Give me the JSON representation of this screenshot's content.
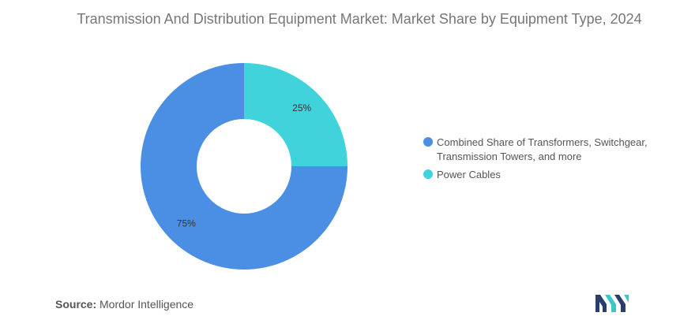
{
  "chart_data": {
    "type": "pie",
    "title": "Transmission And Distribution Equipment Market: Market Share by Equipment Type, 2024",
    "donut": true,
    "legend_position": "right",
    "slices": [
      {
        "label": "Combined Share of Transformers, Switchgear, Transmission Towers, and more",
        "value": 75,
        "display": "75%",
        "color": "#4a8fe3"
      },
      {
        "label": "Power Cables",
        "value": 25,
        "display": "25%",
        "color": "#40d3dc"
      }
    ]
  },
  "source": {
    "label": "Source:",
    "text": "Mordor Intelligence"
  },
  "logo": {
    "icon": "mordor-intelligence-logo-icon",
    "colors": [
      "#2a3e6d",
      "#3fc6c8"
    ]
  }
}
